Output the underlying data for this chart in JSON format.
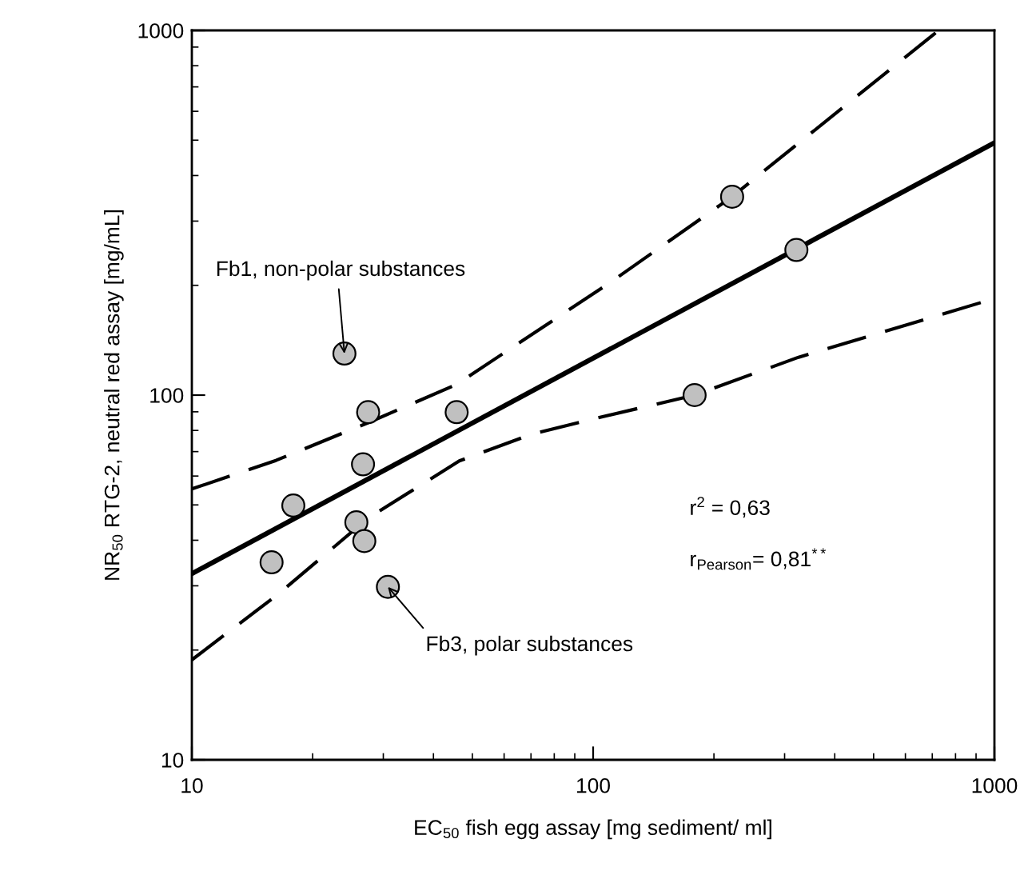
{
  "chart_data": {
    "type": "scatter",
    "xlabel": "EC$_{50}$ fish egg assay [mg sediment/ ml]",
    "ylabel": "NR$_{50}$ RTG-2, neutral red assay [mg/mL]",
    "log": "xy",
    "xlim": [
      10,
      1000
    ],
    "ylim": [
      10,
      1000
    ],
    "xticks": [
      10,
      100,
      1000
    ],
    "yticks": [
      10,
      100,
      1000
    ],
    "grid": false,
    "marker": "circle",
    "series": [
      {
        "color": "#c0c0c0",
        "x": [
          15.8,
          17.9,
          24.0,
          27.5,
          26.7,
          25.7,
          26.9,
          30.8,
          45.7,
          179,
          222,
          321
        ],
        "values": [
          34.8,
          49.8,
          130,
          89.8,
          64.6,
          44.8,
          39.8,
          29.8,
          89.8,
          100,
          350,
          250
        ]
      },
      {
        "type": "line",
        "color": "#000000",
        "line_style": "solid",
        "marker": "none",
        "x": [
          10,
          1000
        ],
        "values": [
          32.4,
          492
        ]
      },
      {
        "type": "line",
        "color": "#000000",
        "line_style": "dashed",
        "marker": "none",
        "x": [
          10,
          16.2,
          27.5,
          45.7,
          112,
          222,
          726
        ],
        "values": [
          55.3,
          66.2,
          84,
          107,
          206,
          350,
          1000
        ]
      },
      {
        "type": "line",
        "color": "#000000",
        "line_style": "dashed",
        "marker": "none",
        "x": [
          10,
          16.5,
          27.5,
          46.4,
          70,
          100,
          179,
          325,
          1000
        ],
        "values": [
          18.8,
          28.6,
          46,
          66,
          78,
          86,
          100,
          127,
          184
        ]
      }
    ],
    "annotations": [
      {
        "text": "Fb1, non-polar substances",
        "x": 24.0,
        "y": 130
      },
      {
        "text": "Fb3, polar substances",
        "x": 30.8,
        "y": 29.8
      },
      "r$^{2}$ = 0,63",
      "r$_{Pearson}$= 0,81$^{**}$"
    ]
  }
}
